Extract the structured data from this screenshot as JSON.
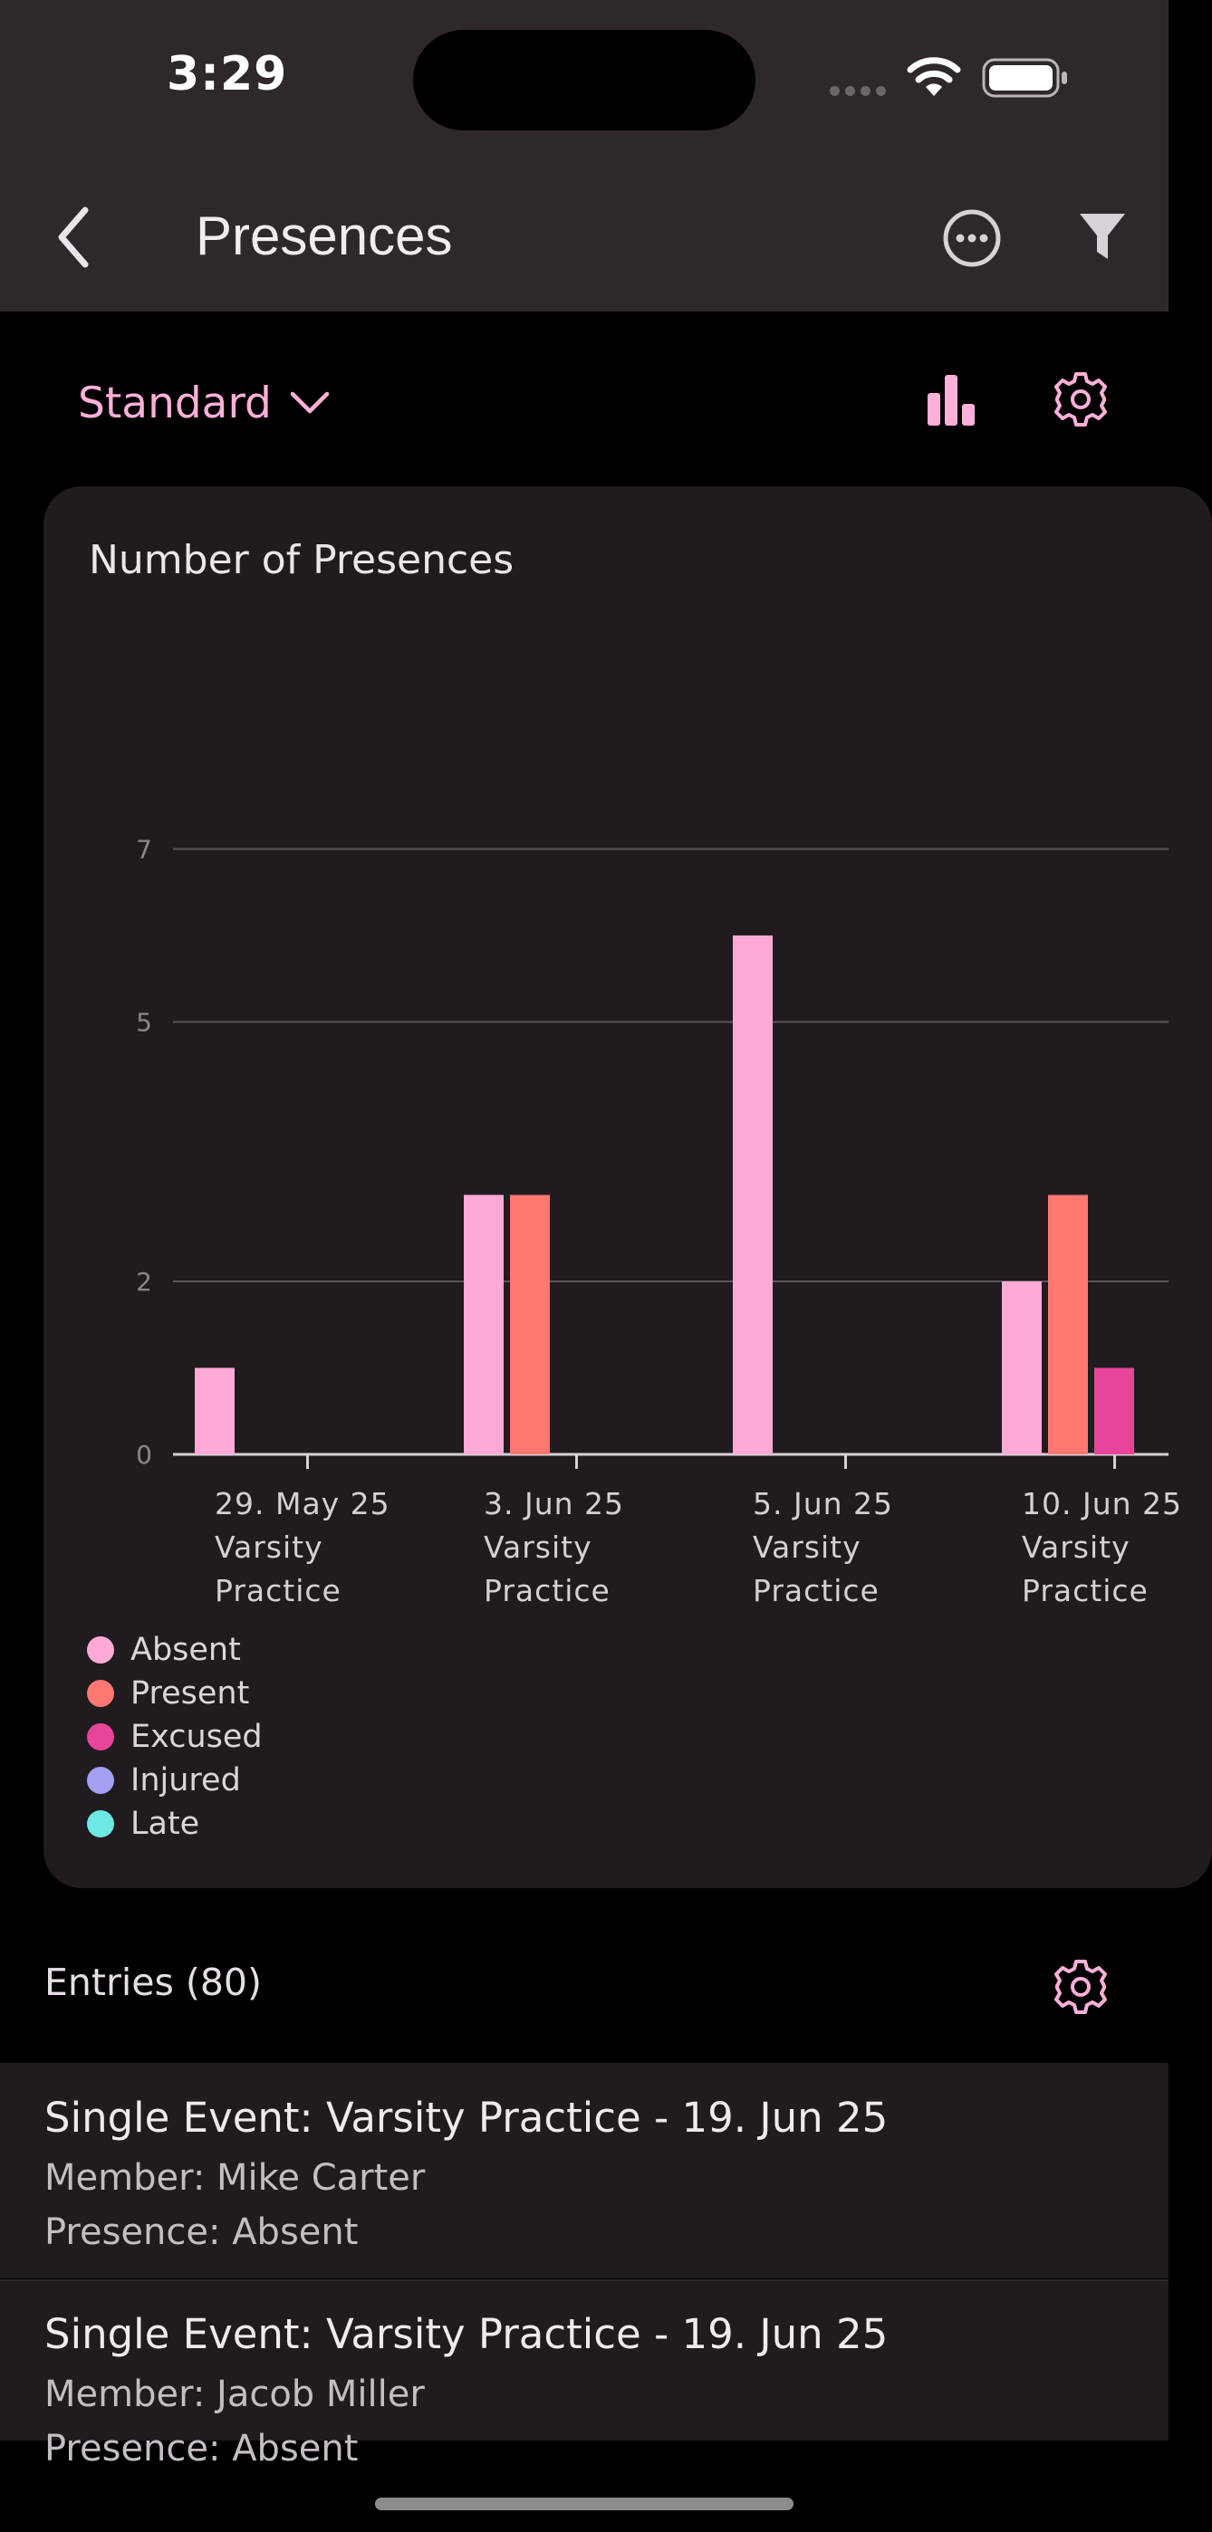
{
  "status_bar": {
    "time": "3:29"
  },
  "app_bar": {
    "title": "Presences"
  },
  "toolbar": {
    "view_label": "Standard"
  },
  "chart_card": {
    "title": "Number of Presences"
  },
  "chart_data": {
    "type": "bar",
    "categories": [
      [
        "29. May 25",
        "Varsity",
        "Practice"
      ],
      [
        "3. Jun 25",
        "Varsity",
        "Practice"
      ],
      [
        "5. Jun 25",
        "Varsity",
        "Practice"
      ],
      [
        "10. Jun 25",
        "Varsity",
        "Practice"
      ]
    ],
    "series": [
      {
        "name": "Absent",
        "color": "#ffaad6",
        "values": [
          1,
          3,
          6,
          2
        ]
      },
      {
        "name": "Present",
        "color": "#ff7872",
        "values": [
          0,
          3,
          0,
          3
        ]
      },
      {
        "name": "Excused",
        "color": "#e8459a",
        "values": [
          0,
          0,
          0,
          1
        ]
      },
      {
        "name": "Injured",
        "color": "#a3a0f2",
        "values": [
          0,
          0,
          0,
          0
        ]
      },
      {
        "name": "Late",
        "color": "#6ee8e4",
        "values": [
          0,
          0,
          0,
          0
        ]
      }
    ],
    "y_ticks": [
      "0",
      "2",
      "5",
      "7"
    ],
    "ylim": [
      0,
      7.5
    ],
    "grid": true,
    "legend_position": "bottom-left"
  },
  "entries": {
    "header": "Entries (80)",
    "items": [
      {
        "title": "Single Event: Varsity Practice - 19. Jun 25",
        "member": "Member: Mike Carter",
        "presence": "Presence: Absent"
      },
      {
        "title": "Single Event: Varsity Practice - 19. Jun 25",
        "member": "Member: Jacob Miller",
        "presence": "Presence: Absent"
      }
    ]
  },
  "colors": {
    "accent": "#ffb0d9",
    "app_bar": "#2e282d",
    "card": "#1f1b1f"
  }
}
